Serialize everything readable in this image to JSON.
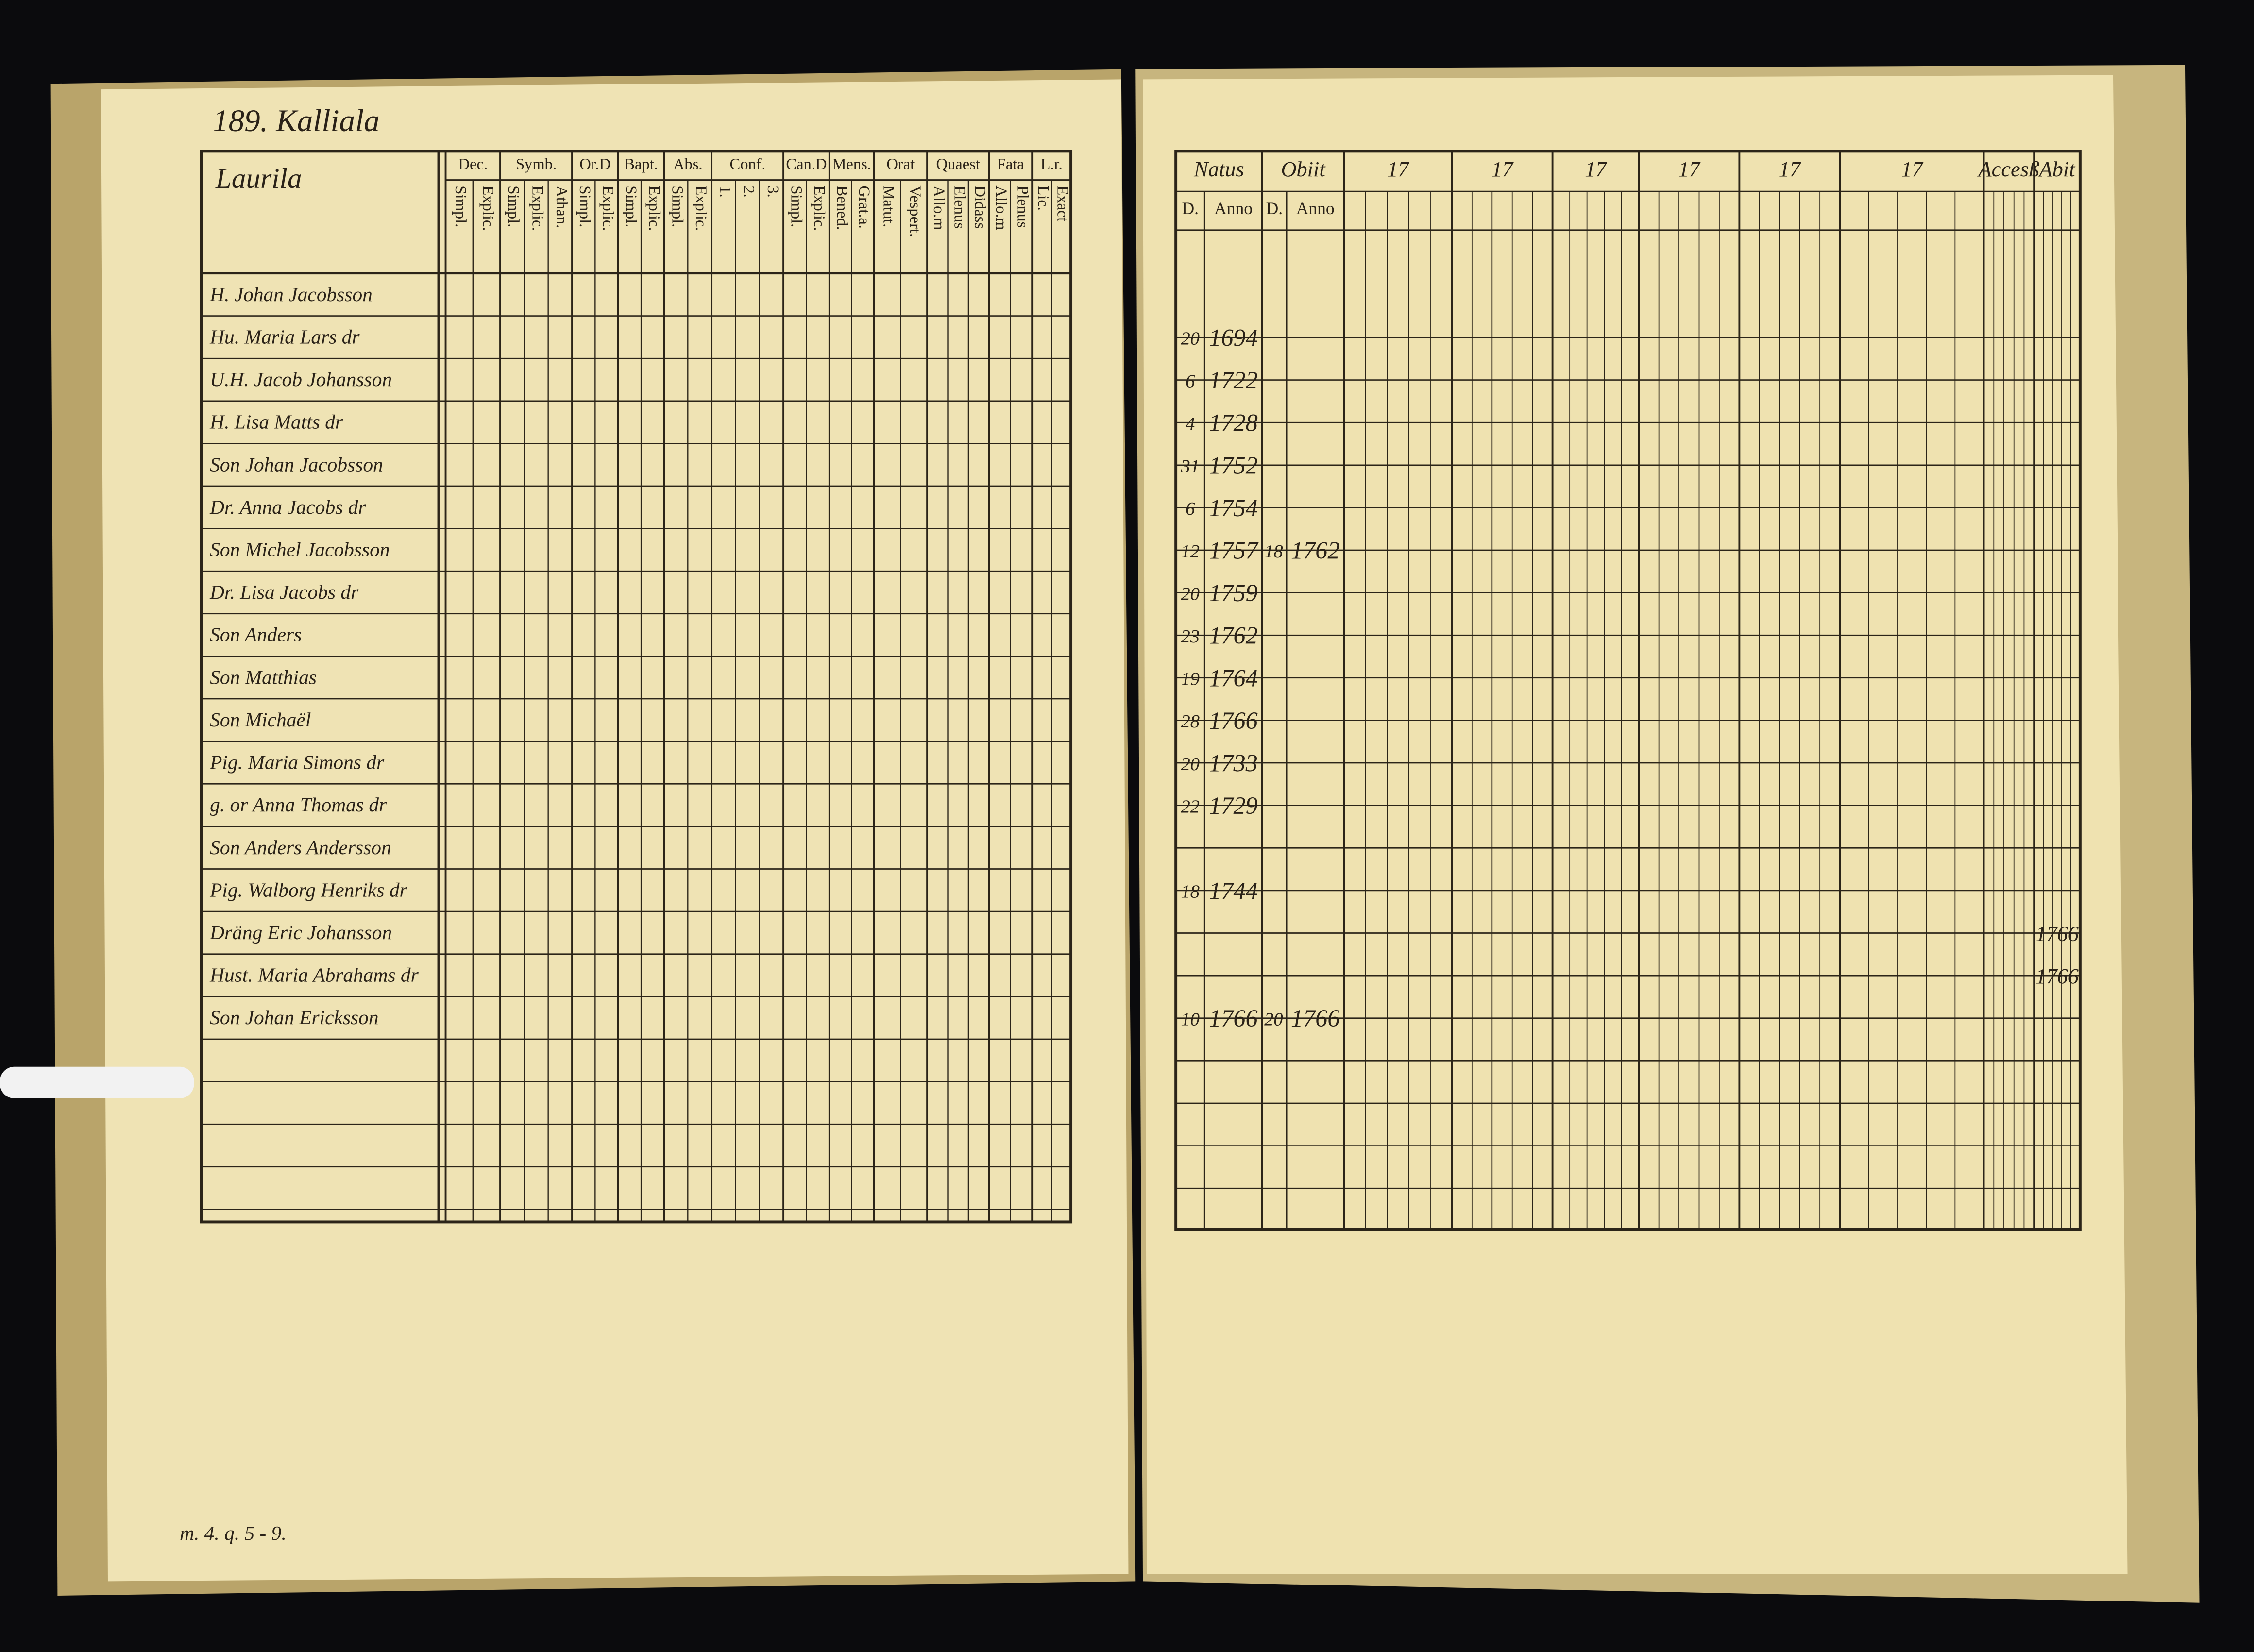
{
  "left_page": {
    "heading": "189. Kalliala",
    "farm": "Laurila",
    "columns": [
      {
        "label": "Dec.",
        "subs": [
          "Simpl.",
          "Explic."
        ]
      },
      {
        "label": "Symb.",
        "subs": [
          "Simpl.",
          "Explic.",
          "Athan."
        ]
      },
      {
        "label": "Or.D",
        "subs": [
          "Simpl.",
          "Explic."
        ]
      },
      {
        "label": "Bapt.",
        "subs": [
          "Simpl.",
          "Explic."
        ]
      },
      {
        "label": "Abs.",
        "subs": [
          "Simpl.",
          "Explic."
        ]
      },
      {
        "label": "Conf.",
        "subs": [
          "1.",
          "2.",
          "3."
        ]
      },
      {
        "label": "Can.D",
        "subs": [
          "Simpl.",
          "Explic."
        ]
      },
      {
        "label": "Mens.",
        "subs": [
          "Bened.",
          "Grat.a."
        ]
      },
      {
        "label": "Orat",
        "subs": [
          "Matut.",
          "Vespert."
        ]
      },
      {
        "label": "Quaest",
        "subs": [
          "Allo.m",
          "Elenus",
          "Didass"
        ]
      },
      {
        "label": "Fata",
        "subs": [
          "Allo.m",
          "Plenus"
        ]
      },
      {
        "label": "L.r.",
        "subs": [
          "Lic.",
          "Exact"
        ]
      }
    ],
    "names": [
      "H. Johan Jacobsson",
      "Hu. Maria Lars dr",
      "U.H. Jacob Johansson",
      "H. Lisa Matts dr",
      "Son Johan Jacobsson",
      "Dr. Anna Jacobs dr",
      "Son Michel Jacobsson",
      "Dr. Lisa Jacobs dr",
      "Son Anders",
      "Son Matthias",
      "Son Michaël",
      "Pig. Maria Simons dr",
      "g. or Anna Thomas dr",
      "Son Anders Andersson",
      "Pig. Walborg Henriks dr",
      "Dräng Eric Johansson",
      "Hust. Maria Abrahams dr",
      "Son Johan Ericksson"
    ],
    "footer": "m. 4. q. 5 - 9."
  },
  "right_page": {
    "columns": [
      {
        "label": "Natus",
        "subs": [
          "D.",
          "Anno"
        ]
      },
      {
        "label": "Obiit",
        "subs": [
          "D.",
          "Anno"
        ]
      },
      {
        "label": "17",
        "subs": []
      },
      {
        "label": "17",
        "subs": []
      },
      {
        "label": "17",
        "subs": []
      },
      {
        "label": "17",
        "subs": []
      },
      {
        "label": "17",
        "subs": []
      },
      {
        "label": "17",
        "subs": []
      },
      {
        "label": "Accesß",
        "subs": []
      },
      {
        "label": "Abit",
        "subs": []
      }
    ],
    "entries": [
      {
        "row": 1,
        "born_day": "20",
        "born_year": "1694"
      },
      {
        "row": 2,
        "born_day": "6",
        "born_year": "1722"
      },
      {
        "row": 3,
        "born_day": "4",
        "born_year": "1728"
      },
      {
        "row": 4,
        "born_day": "31",
        "born_year": "1752"
      },
      {
        "row": 5,
        "born_day": "6",
        "born_year": "1754"
      },
      {
        "row": 6,
        "born_day": "12",
        "born_year": "1757",
        "died_day": "18",
        "died_year": "1762"
      },
      {
        "row": 7,
        "born_day": "20",
        "born_year": "1759"
      },
      {
        "row": 8,
        "born_day": "23",
        "born_year": "1762"
      },
      {
        "row": 9,
        "born_day": "19",
        "born_year": "1764"
      },
      {
        "row": 10,
        "born_day": "28",
        "born_year": "1766"
      },
      {
        "row": 11,
        "born_day": "20",
        "born_year": "1733"
      },
      {
        "row": 12,
        "born_day": "22",
        "born_year": "1729"
      },
      {
        "row": 14,
        "born_day": "18",
        "born_year": "1744"
      },
      {
        "row": 15,
        "left": "1766"
      },
      {
        "row": 16,
        "left": "1766"
      },
      {
        "row": 17,
        "born_day": "10",
        "born_year": "1766",
        "died_day": "20",
        "died_year": "1766"
      }
    ]
  }
}
